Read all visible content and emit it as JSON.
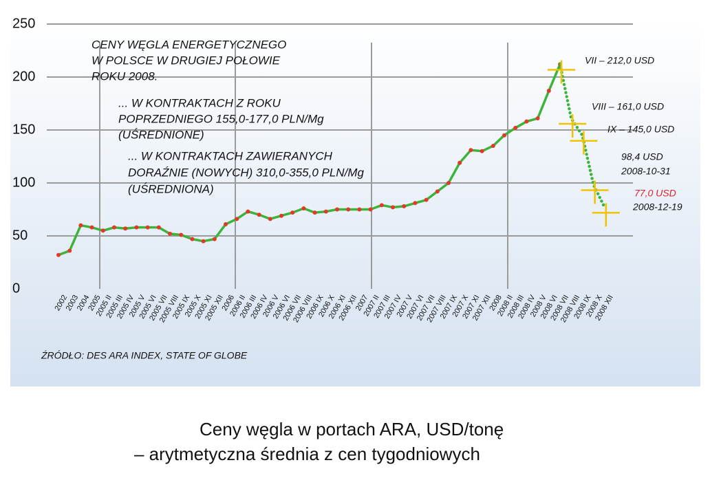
{
  "chart_data": {
    "type": "line",
    "title": "Ceny węgla w portach ARA, USD/tonę",
    "subtitle": "– arytmetyczna średnia z cen tygodniowych",
    "source": "ŹRÓDŁO: DES ARA INDEX, STATE OF GLOBE",
    "notes": [
      "CENY WĘGLA ENERGETYCZNEGO",
      "W POLSCE W DRUGIEJ POŁOWIE",
      "ROKU 2008.",
      "... W KONTRAKTACH Z ROKU",
      "POPRZEDNIEGO 155,0-177,0 PLN/Mg",
      "(UŚREDNIONE)",
      "... W KONTRAKTACH ZAWIERANYCH",
      "DORAŹNIE (NOWYCH) 310,0-355,0 PLN/Mg",
      "(UŚREDNIONA)"
    ],
    "categories": [
      "2002",
      "2003",
      "2004",
      "2005",
      "2005 II",
      "2005 III",
      "2005 IV",
      "2005 V",
      "2005 VI",
      "2005 VII",
      "2005 VIII",
      "2005 IX",
      "2005 X",
      "2005 XI",
      "2005 XII",
      "2006",
      "2006 II",
      "2006 III",
      "2006 IV",
      "2006 V",
      "2006 VI",
      "2006 VII",
      "2006 VIII",
      "2006 IX",
      "2006 X",
      "2006 XI",
      "2006 XII",
      "2007",
      "2007 II",
      "2007 III",
      "2007 IV",
      "2007 V",
      "2007 VI",
      "2007 VII",
      "2007 VIII",
      "2007 IX",
      "2007 X",
      "2007 XI",
      "2007 XII",
      "2008",
      "2008 II",
      "2008 III",
      "2008 IV",
      "2008 V",
      "2008 VI",
      "2008 VII",
      "2008 VIII",
      "2008 IX",
      "2008 X",
      "2008 XII"
    ],
    "series": [
      {
        "color": "#3cb43c",
        "marker_color": "#e03a2a",
        "style": "solid",
        "values": [
          32,
          36,
          60,
          58,
          55,
          58,
          57,
          58,
          58,
          58,
          52,
          51,
          47,
          45,
          47,
          61,
          66,
          73,
          70,
          66,
          69,
          72,
          76,
          72,
          73,
          75,
          75,
          75,
          75,
          79,
          77,
          78,
          81,
          84,
          92,
          100,
          119,
          131,
          130,
          135,
          145,
          152,
          158,
          161,
          187,
          212,
          null,
          null,
          null,
          null
        ]
      },
      {
        "color": "#3cb43c",
        "style": "dotted",
        "values": [
          null,
          null,
          null,
          null,
          null,
          null,
          null,
          null,
          null,
          null,
          null,
          null,
          null,
          null,
          null,
          null,
          null,
          null,
          null,
          null,
          null,
          null,
          null,
          null,
          null,
          null,
          null,
          null,
          null,
          null,
          null,
          null,
          null,
          null,
          null,
          null,
          null,
          null,
          null,
          null,
          null,
          null,
          null,
          null,
          null,
          212,
          161,
          145,
          98.4,
          77
        ]
      }
    ],
    "annotations": [
      {
        "text": "VII – 212,0 USD",
        "color": "#111111"
      },
      {
        "text": "VIII – 161,0 USD",
        "color": "#111111"
      },
      {
        "text": "IX – 145,0 USD",
        "color": "#111111"
      },
      {
        "text": "98,4 USD",
        "color": "#111111"
      },
      {
        "text": "2008-10-31",
        "color": "#111111"
      },
      {
        "text": "77,0 USD",
        "color": "#e0202a"
      },
      {
        "text": "2008-12-19",
        "color": "#111111"
      }
    ],
    "marker_guide_color": "#f2c200",
    "ylim": [
      0,
      250
    ],
    "yticks": [
      0,
      50,
      100,
      150,
      200,
      250
    ],
    "grid": true
  }
}
